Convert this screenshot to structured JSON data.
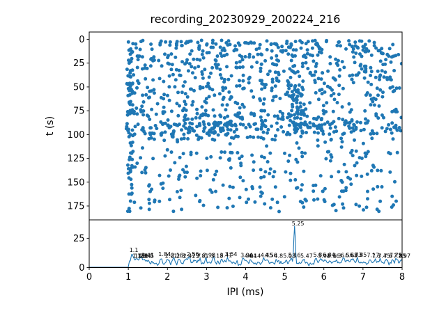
{
  "figure": {
    "title": "recording_20230929_200224_216",
    "background_color": "#ffffff",
    "accent_color": "#1f77b4",
    "text_color": "#000000"
  },
  "chart_data": [
    {
      "type": "scatter",
      "title": "recording_20230929_200224_216",
      "xlabel": "",
      "ylabel": "t (s)",
      "xlim": [
        0,
        8
      ],
      "ylim": [
        189.6,
        -7.7
      ],
      "y_axis_inverted": true,
      "yticks": [
        0,
        25,
        50,
        75,
        100,
        125,
        150,
        175
      ],
      "grid": false,
      "marker_color": "#1f77b4",
      "marker_radius": 2.5,
      "x_data_min": 0.95,
      "x_data_max": 7.99,
      "seed": 1337,
      "density_bands": [
        [
          1,
          8,
          85
        ],
        [
          8,
          30,
          190
        ],
        [
          30,
          55,
          180
        ],
        [
          55,
          75,
          105
        ],
        [
          75,
          88,
          120
        ],
        [
          88,
          100,
          185
        ],
        [
          100,
          107,
          45
        ],
        [
          107,
          118,
          14
        ],
        [
          118,
          128,
          50
        ],
        [
          128,
          136,
          16
        ],
        [
          136,
          145,
          42
        ],
        [
          145,
          152,
          14
        ],
        [
          152,
          161,
          38
        ],
        [
          161,
          168,
          12
        ],
        [
          168,
          181,
          48
        ]
      ],
      "columns": [
        [
          0.98,
          1.12,
          1,
          183,
          55
        ]
      ],
      "clusters": [
        [
          5.3,
          0.15,
          48,
          100,
          55
        ],
        [
          3.35,
          0.25,
          86,
          98,
          28
        ]
      ]
    },
    {
      "type": "line",
      "xlabel": "IPI (ms)",
      "ylabel": "",
      "xlim": [
        0,
        8
      ],
      "ylim": [
        0,
        40.8
      ],
      "xticks": [
        0,
        1,
        2,
        3,
        4,
        5,
        6,
        7,
        8
      ],
      "yticks": [
        0,
        25
      ],
      "grid": false,
      "line_color": "#1f77b4",
      "seed": 2024,
      "onset_x": 1.0,
      "baseline_before_onset": 0.25,
      "noise_floor_range": [
        1,
        8
      ],
      "peaks": [
        {
          "x": 1.1,
          "h": 8,
          "label": "1.1"
        },
        {
          "x": 1.18,
          "h": 3,
          "label": "1.18"
        },
        {
          "x": 1.23,
          "h": 3,
          "label": "1.23"
        },
        {
          "x": 1.3,
          "h": 3,
          "label": "1.3"
        },
        {
          "x": 1.34,
          "h": 3,
          "label": "1.34"
        },
        {
          "x": 1.41,
          "h": 3.5,
          "label": "1.41"
        },
        {
          "x": 1.5,
          "h": 3,
          "label": "1.5"
        },
        {
          "x": 1.84,
          "h": 4.5,
          "label": "1.84"
        },
        {
          "x": 2.01,
          "h": 3,
          "label": "2.01"
        },
        {
          "x": 2.16,
          "h": 3.5,
          "label": "2.16"
        },
        {
          "x": 2.3,
          "h": 3,
          "label": "2.3"
        },
        {
          "x": 2.47,
          "h": 3,
          "label": "2.47"
        },
        {
          "x": 2.56,
          "h": 4.5,
          "label": "2.56"
        },
        {
          "x": 2.7,
          "h": 3,
          "label": "2.7"
        },
        {
          "x": 2.81,
          "h": 3,
          "label": "2.81"
        },
        {
          "x": 2.98,
          "h": 3.5,
          "label": "2.98"
        },
        {
          "x": 3.18,
          "h": 3,
          "label": "3.18"
        },
        {
          "x": 3.41,
          "h": 3.5,
          "label": "3.41"
        },
        {
          "x": 3.54,
          "h": 4.5,
          "label": "3.54"
        },
        {
          "x": 3.94,
          "h": 3.5,
          "label": "3.94"
        },
        {
          "x": 4.04,
          "h": 3,
          "label": "4.04"
        },
        {
          "x": 4.14,
          "h": 3,
          "label": "4.14"
        },
        {
          "x": 4.45,
          "h": 3.5,
          "label": "4.45"
        },
        {
          "x": 4.56,
          "h": 3.5,
          "label": "4.56"
        },
        {
          "x": 4.8,
          "h": 3,
          "label": "4.8"
        },
        {
          "x": 5.03,
          "h": 3,
          "label": "5.03"
        },
        {
          "x": 5.16,
          "h": 3.5,
          "label": "5.16"
        },
        {
          "x": 5.25,
          "h": 32,
          "label": "5.25",
          "w": 0.02
        },
        {
          "x": 5.47,
          "h": 3,
          "label": "5.47"
        },
        {
          "x": 5.8,
          "h": 4,
          "label": "5.8"
        },
        {
          "x": 5.92,
          "h": 3,
          "label": "5.92"
        },
        {
          "x": 6.04,
          "h": 4,
          "label": "6.04"
        },
        {
          "x": 6.16,
          "h": 3,
          "label": "6.16"
        },
        {
          "x": 6.3,
          "h": 3,
          "label": "6.3"
        },
        {
          "x": 6.5,
          "h": 3.5,
          "label": "6.5"
        },
        {
          "x": 6.62,
          "h": 3.5,
          "label": "6.62"
        },
        {
          "x": 6.73,
          "h": 4,
          "label": "6.73"
        },
        {
          "x": 6.85,
          "h": 4,
          "label": "6.85"
        },
        {
          "x": 7.17,
          "h": 3.5,
          "label": "7.17"
        },
        {
          "x": 7.3,
          "h": 3,
          "label": "7.3"
        },
        {
          "x": 7.45,
          "h": 3,
          "label": "7.45"
        },
        {
          "x": 7.6,
          "h": 3,
          "label": "7.6"
        },
        {
          "x": 7.75,
          "h": 3.5,
          "label": "7.75"
        },
        {
          "x": 7.85,
          "h": 3,
          "label": "7.85"
        },
        {
          "x": 7.97,
          "h": 3,
          "label": "7.97"
        }
      ]
    }
  ]
}
